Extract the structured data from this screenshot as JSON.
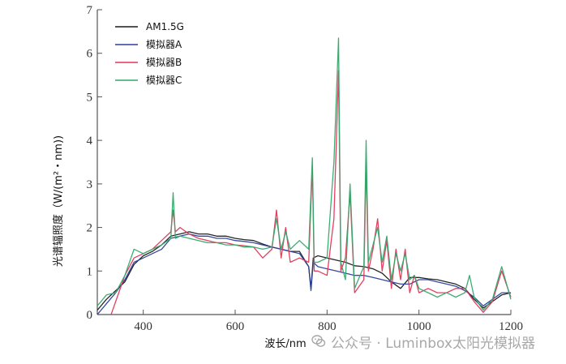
{
  "chart_data": {
    "type": "line",
    "title": "",
    "xlabel": "波长/nm",
    "ylabel": "光谱辐照度（W/(m²・nm))",
    "xlim": [
      300,
      1200
    ],
    "ylim": [
      0,
      7
    ],
    "xticks": [
      400,
      600,
      800,
      1000,
      1200
    ],
    "yticks": [
      0,
      1,
      2,
      3,
      4,
      5,
      6,
      7
    ],
    "grid": false,
    "legend_position": "top-left",
    "series": [
      {
        "name": "AM1.5G",
        "color": "#1a1a1a",
        "points": [
          [
            300,
            0.1
          ],
          [
            320,
            0.35
          ],
          [
            340,
            0.55
          ],
          [
            360,
            0.75
          ],
          [
            380,
            1.15
          ],
          [
            400,
            1.35
          ],
          [
            420,
            1.45
          ],
          [
            440,
            1.6
          ],
          [
            460,
            1.8
          ],
          [
            480,
            1.85
          ],
          [
            500,
            1.9
          ],
          [
            520,
            1.85
          ],
          [
            540,
            1.85
          ],
          [
            560,
            1.8
          ],
          [
            580,
            1.8
          ],
          [
            600,
            1.75
          ],
          [
            620,
            1.72
          ],
          [
            640,
            1.7
          ],
          [
            660,
            1.62
          ],
          [
            680,
            1.55
          ],
          [
            700,
            1.5
          ],
          [
            720,
            1.45
          ],
          [
            740,
            1.45
          ],
          [
            760,
            1.1
          ],
          [
            765,
            0.6
          ],
          [
            770,
            1.3
          ],
          [
            780,
            1.35
          ],
          [
            800,
            1.3
          ],
          [
            820,
            1.25
          ],
          [
            840,
            1.2
          ],
          [
            860,
            1.12
          ],
          [
            880,
            1.1
          ],
          [
            900,
            1.05
          ],
          [
            920,
            0.95
          ],
          [
            940,
            0.75
          ],
          [
            960,
            0.6
          ],
          [
            980,
            0.85
          ],
          [
            1000,
            0.85
          ],
          [
            1020,
            0.82
          ],
          [
            1040,
            0.8
          ],
          [
            1060,
            0.75
          ],
          [
            1080,
            0.7
          ],
          [
            1100,
            0.6
          ],
          [
            1120,
            0.35
          ],
          [
            1140,
            0.15
          ],
          [
            1160,
            0.3
          ],
          [
            1180,
            0.45
          ],
          [
            1200,
            0.5
          ]
        ]
      },
      {
        "name": "模拟器A",
        "color": "#2b3f9a",
        "points": [
          [
            300,
            0.0
          ],
          [
            320,
            0.25
          ],
          [
            340,
            0.5
          ],
          [
            360,
            0.8
          ],
          [
            380,
            1.2
          ],
          [
            400,
            1.3
          ],
          [
            420,
            1.4
          ],
          [
            440,
            1.5
          ],
          [
            460,
            1.75
          ],
          [
            480,
            1.8
          ],
          [
            500,
            1.85
          ],
          [
            520,
            1.8
          ],
          [
            540,
            1.8
          ],
          [
            560,
            1.75
          ],
          [
            580,
            1.75
          ],
          [
            600,
            1.7
          ],
          [
            620,
            1.68
          ],
          [
            640,
            1.65
          ],
          [
            660,
            1.6
          ],
          [
            680,
            1.55
          ],
          [
            700,
            1.5
          ],
          [
            720,
            1.45
          ],
          [
            740,
            1.4
          ],
          [
            760,
            1.1
          ],
          [
            765,
            0.55
          ],
          [
            770,
            1.2
          ],
          [
            780,
            1.1
          ],
          [
            800,
            1.05
          ],
          [
            820,
            1.0
          ],
          [
            840,
            0.95
          ],
          [
            860,
            0.9
          ],
          [
            880,
            0.9
          ],
          [
            900,
            0.85
          ],
          [
            920,
            0.8
          ],
          [
            940,
            0.75
          ],
          [
            960,
            0.7
          ],
          [
            980,
            0.7
          ],
          [
            1000,
            0.8
          ],
          [
            1020,
            0.8
          ],
          [
            1040,
            0.75
          ],
          [
            1060,
            0.7
          ],
          [
            1080,
            0.65
          ],
          [
            1100,
            0.55
          ],
          [
            1120,
            0.4
          ],
          [
            1140,
            0.2
          ],
          [
            1160,
            0.35
          ],
          [
            1180,
            0.5
          ],
          [
            1200,
            0.5
          ]
        ]
      },
      {
        "name": "模拟器B",
        "color": "#e0365a",
        "points": [
          [
            330,
            0.0
          ],
          [
            340,
            0.3
          ],
          [
            360,
            0.9
          ],
          [
            380,
            1.3
          ],
          [
            400,
            1.4
          ],
          [
            420,
            1.5
          ],
          [
            440,
            1.7
          ],
          [
            460,
            1.9
          ],
          [
            465,
            2.4
          ],
          [
            470,
            1.9
          ],
          [
            480,
            2.0
          ],
          [
            500,
            1.85
          ],
          [
            520,
            1.75
          ],
          [
            540,
            1.7
          ],
          [
            560,
            1.65
          ],
          [
            580,
            1.65
          ],
          [
            600,
            1.6
          ],
          [
            620,
            1.58
          ],
          [
            640,
            1.55
          ],
          [
            660,
            1.3
          ],
          [
            680,
            1.5
          ],
          [
            690,
            2.4
          ],
          [
            700,
            1.3
          ],
          [
            710,
            2.0
          ],
          [
            720,
            1.2
          ],
          [
            740,
            1.3
          ],
          [
            760,
            1.2
          ],
          [
            768,
            3.4
          ],
          [
            772,
            1.0
          ],
          [
            780,
            1.0
          ],
          [
            800,
            0.9
          ],
          [
            815,
            2.2
          ],
          [
            825,
            5.6
          ],
          [
            830,
            1.0
          ],
          [
            840,
            1.3
          ],
          [
            850,
            2.8
          ],
          [
            860,
            0.5
          ],
          [
            880,
            0.8
          ],
          [
            885,
            3.5
          ],
          [
            890,
            1.0
          ],
          [
            900,
            1.5
          ],
          [
            910,
            2.2
          ],
          [
            920,
            1.0
          ],
          [
            930,
            1.7
          ],
          [
            940,
            0.6
          ],
          [
            950,
            1.5
          ],
          [
            960,
            0.8
          ],
          [
            970,
            1.5
          ],
          [
            980,
            0.5
          ],
          [
            990,
            0.9
          ],
          [
            1000,
            0.5
          ],
          [
            1020,
            0.6
          ],
          [
            1040,
            0.5
          ],
          [
            1060,
            0.5
          ],
          [
            1080,
            0.6
          ],
          [
            1100,
            0.6
          ],
          [
            1120,
            0.3
          ],
          [
            1140,
            0.05
          ],
          [
            1160,
            0.3
          ],
          [
            1180,
            1.0
          ],
          [
            1200,
            0.4
          ]
        ]
      },
      {
        "name": "模拟器C",
        "color": "#33a86a",
        "points": [
          [
            300,
            0.2
          ],
          [
            320,
            0.45
          ],
          [
            340,
            0.5
          ],
          [
            360,
            0.9
          ],
          [
            380,
            1.5
          ],
          [
            400,
            1.4
          ],
          [
            420,
            1.5
          ],
          [
            440,
            1.6
          ],
          [
            460,
            1.75
          ],
          [
            465,
            2.8
          ],
          [
            470,
            1.75
          ],
          [
            480,
            1.8
          ],
          [
            500,
            1.75
          ],
          [
            520,
            1.7
          ],
          [
            540,
            1.65
          ],
          [
            560,
            1.65
          ],
          [
            580,
            1.6
          ],
          [
            600,
            1.6
          ],
          [
            620,
            1.55
          ],
          [
            640,
            1.55
          ],
          [
            660,
            1.5
          ],
          [
            680,
            1.55
          ],
          [
            690,
            2.2
          ],
          [
            700,
            1.5
          ],
          [
            710,
            1.9
          ],
          [
            720,
            1.5
          ],
          [
            740,
            1.7
          ],
          [
            760,
            1.5
          ],
          [
            768,
            3.6
          ],
          [
            772,
            1.2
          ],
          [
            780,
            1.2
          ],
          [
            800,
            1.3
          ],
          [
            815,
            3.5
          ],
          [
            825,
            6.35
          ],
          [
            830,
            1.2
          ],
          [
            840,
            0.8
          ],
          [
            850,
            3.0
          ],
          [
            860,
            0.6
          ],
          [
            880,
            1.1
          ],
          [
            885,
            4.0
          ],
          [
            890,
            1.2
          ],
          [
            900,
            1.6
          ],
          [
            910,
            2.0
          ],
          [
            920,
            1.2
          ],
          [
            930,
            1.8
          ],
          [
            940,
            0.8
          ],
          [
            950,
            1.4
          ],
          [
            960,
            1.0
          ],
          [
            970,
            1.4
          ],
          [
            980,
            0.8
          ],
          [
            990,
            0.9
          ],
          [
            1000,
            0.6
          ],
          [
            1020,
            0.5
          ],
          [
            1040,
            0.4
          ],
          [
            1060,
            0.5
          ],
          [
            1080,
            0.4
          ],
          [
            1100,
            0.5
          ],
          [
            1110,
            0.9
          ],
          [
            1120,
            0.4
          ],
          [
            1140,
            0.1
          ],
          [
            1160,
            0.35
          ],
          [
            1180,
            1.1
          ],
          [
            1200,
            0.35
          ]
        ]
      }
    ]
  },
  "watermark": {
    "text": "公众号 · Luminbox太阳光模拟器",
    "icon": "wechat-icon"
  }
}
